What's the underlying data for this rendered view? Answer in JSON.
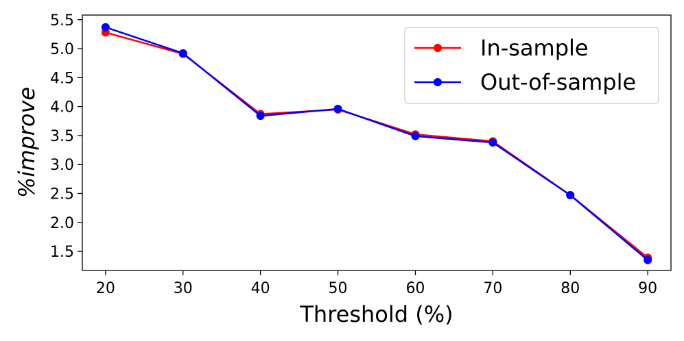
{
  "chart_data": {
    "type": "line",
    "title": "",
    "xlabel": "Threshold (%)",
    "ylabel": "%improve",
    "x": [
      20,
      30,
      40,
      50,
      60,
      70,
      80,
      90
    ],
    "xlim": [
      17,
      93
    ],
    "ylim": [
      1.17,
      5.58
    ],
    "x_ticks": [
      "20",
      "30",
      "40",
      "50",
      "60",
      "70",
      "80",
      "90"
    ],
    "y_ticks": [
      "1.5",
      "2.0",
      "2.5",
      "3.0",
      "3.5",
      "4.0",
      "4.5",
      "5.0",
      "5.5"
    ],
    "grid": false,
    "legend_position": "top-right",
    "series": [
      {
        "name": "In-sample",
        "color": "#ff0000",
        "values": [
          5.28,
          4.91,
          3.87,
          3.95,
          3.52,
          3.4,
          2.47,
          1.39
        ]
      },
      {
        "name": "Out-of-sample",
        "color": "#0000ff",
        "values": [
          5.37,
          4.92,
          3.84,
          3.96,
          3.49,
          3.38,
          2.47,
          1.35
        ]
      }
    ]
  }
}
